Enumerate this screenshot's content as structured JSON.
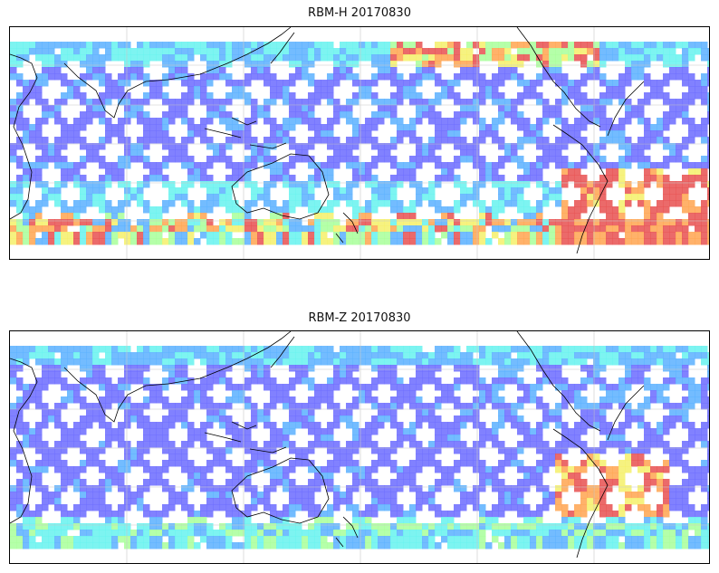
{
  "panels": [
    {
      "title": "RBM-H 20170830",
      "variant": "h"
    },
    {
      "title": "RBM-Z 20170830",
      "variant": "z"
    }
  ],
  "colors": {
    "low": "#6b6bff",
    "low_mid": "#5ab0ff",
    "mid": "#66f2ee",
    "mid_high": "#a8ff9a",
    "high": "#f4f06a",
    "very_high": "#ffa550",
    "peak": "#e85050",
    "coastline": "#000000",
    "gridline": "#c8c8c8"
  },
  "icons": {
    "map_projection": "plate-carree-map"
  }
}
